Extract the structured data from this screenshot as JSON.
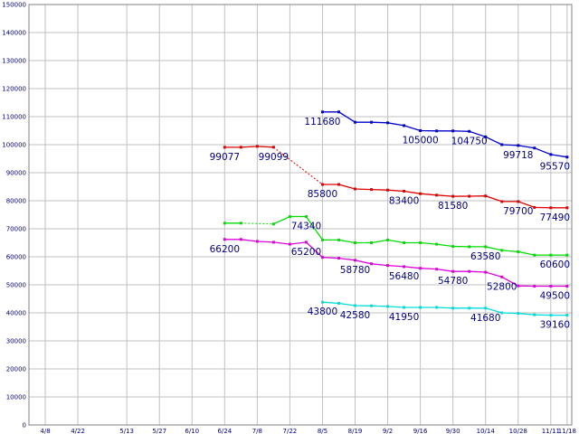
{
  "chart_data": {
    "type": "line",
    "title": "",
    "xlabel": "",
    "ylabel": "",
    "ylim": [
      0,
      150000
    ],
    "y_ticks": [
      0,
      10000,
      20000,
      30000,
      40000,
      50000,
      60000,
      70000,
      80000,
      90000,
      100000,
      110000,
      120000,
      130000,
      140000,
      150000
    ],
    "x_ticks": [
      "4/8",
      "4/22",
      "5/13",
      "5/27",
      "6/10",
      "6/24",
      "7/8",
      "7/22",
      "8/5",
      "8/19",
      "9/2",
      "9/16",
      "9/30",
      "10/14",
      "10/28",
      "11/11",
      "11/18"
    ],
    "x_domain": [
      "4/1",
      "11/20"
    ],
    "grid": true,
    "legend": "none",
    "series": [
      {
        "color": "#0000cc",
        "points": [
          [
            "8/5",
            111680
          ],
          [
            "8/12",
            111680
          ],
          [
            "8/19",
            108000
          ],
          [
            "8/26",
            108000
          ],
          [
            "9/2",
            107800
          ],
          [
            "9/9",
            106800
          ],
          [
            "9/16",
            105000
          ],
          [
            "9/23",
            104900
          ],
          [
            "9/30",
            104900
          ],
          [
            "10/7",
            104750
          ],
          [
            "10/14",
            102800
          ],
          [
            "10/21",
            100000
          ],
          [
            "10/28",
            99718
          ],
          [
            "11/4",
            98800
          ],
          [
            "11/11",
            96500
          ],
          [
            "11/18",
            95570
          ]
        ],
        "segments": [],
        "labels": [
          [
            "8/5",
            111680,
            "111680"
          ],
          [
            "9/16",
            105000,
            "105000"
          ],
          [
            "10/7",
            104750,
            "104750"
          ],
          [
            "10/28",
            99718,
            "99718"
          ],
          [
            "11/18",
            95570,
            "95570"
          ]
        ]
      },
      {
        "color": "#dd0000",
        "points": [
          [
            "6/24",
            99077
          ],
          [
            "7/1",
            99077
          ],
          [
            "7/8",
            99400
          ],
          [
            "7/15",
            99099
          ],
          [
            "8/5",
            85800
          ],
          [
            "8/12",
            85800
          ],
          [
            "8/19",
            84200
          ],
          [
            "8/26",
            84000
          ],
          [
            "9/2",
            83800
          ],
          [
            "9/9",
            83400
          ],
          [
            "9/16",
            82500
          ],
          [
            "9/23",
            82000
          ],
          [
            "9/30",
            81580
          ],
          [
            "10/7",
            81600
          ],
          [
            "10/14",
            81700
          ],
          [
            "10/21",
            79700
          ],
          [
            "10/28",
            79700
          ],
          [
            "11/4",
            77600
          ],
          [
            "11/11",
            77490
          ],
          [
            "11/18",
            77490
          ]
        ],
        "segments": [
          [
            0,
            3
          ],
          [
            4,
            19
          ]
        ],
        "labels": [
          [
            "6/24",
            99077,
            "99077"
          ],
          [
            "7/15",
            99099,
            "99099"
          ],
          [
            "8/5",
            85800,
            "85800"
          ],
          [
            "9/9",
            83400,
            "83400"
          ],
          [
            "9/30",
            81580,
            "81580"
          ],
          [
            "10/28",
            79700,
            "79700"
          ],
          [
            "11/18",
            77490,
            "77490"
          ]
        ]
      },
      {
        "color": "#00dd00",
        "points": [
          [
            "6/24",
            72000
          ],
          [
            "7/1",
            72000
          ],
          [
            "7/15",
            71700
          ],
          [
            "7/22",
            74340
          ],
          [
            "7/29",
            74340
          ],
          [
            "8/5",
            66000
          ],
          [
            "8/12",
            66000
          ],
          [
            "8/19",
            65000
          ],
          [
            "8/26",
            65000
          ],
          [
            "9/2",
            66000
          ],
          [
            "9/9",
            65000
          ],
          [
            "9/16",
            65000
          ],
          [
            "9/23",
            64500
          ],
          [
            "9/30",
            63700
          ],
          [
            "10/7",
            63580
          ],
          [
            "10/14",
            63580
          ],
          [
            "10/21",
            62300
          ],
          [
            "10/28",
            61800
          ],
          [
            "11/4",
            60600
          ],
          [
            "11/11",
            60600
          ],
          [
            "11/18",
            60600
          ]
        ],
        "segments": [
          [
            0,
            1
          ],
          [
            2,
            20
          ]
        ],
        "labels": [
          [
            "7/29",
            74340,
            "74340"
          ],
          [
            "10/14",
            63580,
            "63580"
          ],
          [
            "11/18",
            60600,
            "60600"
          ]
        ]
      },
      {
        "color": "#dd00dd",
        "points": [
          [
            "6/24",
            66200
          ],
          [
            "7/1",
            66200
          ],
          [
            "7/8",
            65500
          ],
          [
            "7/15",
            65200
          ],
          [
            "7/22",
            64500
          ],
          [
            "7/29",
            65200
          ],
          [
            "8/5",
            59800
          ],
          [
            "8/12",
            59500
          ],
          [
            "8/19",
            58780
          ],
          [
            "8/26",
            57500
          ],
          [
            "9/2",
            56900
          ],
          [
            "9/9",
            56480
          ],
          [
            "9/16",
            55900
          ],
          [
            "9/23",
            55600
          ],
          [
            "9/30",
            54780
          ],
          [
            "10/7",
            54780
          ],
          [
            "10/14",
            54500
          ],
          [
            "10/21",
            52800
          ],
          [
            "10/28",
            49600
          ],
          [
            "11/4",
            49500
          ],
          [
            "11/11",
            49500
          ],
          [
            "11/18",
            49500
          ]
        ],
        "segments": [],
        "labels": [
          [
            "6/24",
            66200,
            "66200"
          ],
          [
            "7/29",
            65200,
            "65200"
          ],
          [
            "8/19",
            58780,
            "58780"
          ],
          [
            "9/9",
            56480,
            "56480"
          ],
          [
            "9/30",
            54780,
            "54780"
          ],
          [
            "10/21",
            52800,
            "52800"
          ],
          [
            "11/18",
            49500,
            "49500"
          ]
        ]
      },
      {
        "color": "#00dddd",
        "points": [
          [
            "8/5",
            43800
          ],
          [
            "8/12",
            43400
          ],
          [
            "8/19",
            42580
          ],
          [
            "8/26",
            42500
          ],
          [
            "9/2",
            42300
          ],
          [
            "9/9",
            41950
          ],
          [
            "9/16",
            41950
          ],
          [
            "9/23",
            41950
          ],
          [
            "9/30",
            41680
          ],
          [
            "10/7",
            41680
          ],
          [
            "10/14",
            41680
          ],
          [
            "10/21",
            40000
          ],
          [
            "10/28",
            39800
          ],
          [
            "11/4",
            39300
          ],
          [
            "11/11",
            39160
          ],
          [
            "11/18",
            39160
          ]
        ],
        "segments": [],
        "labels": [
          [
            "8/5",
            43800,
            "43800"
          ],
          [
            "8/19",
            42580,
            "42580"
          ],
          [
            "9/9",
            41950,
            "41950"
          ],
          [
            "10/14",
            41680,
            "41680"
          ],
          [
            "11/18",
            39160,
            "39160"
          ]
        ]
      }
    ]
  }
}
